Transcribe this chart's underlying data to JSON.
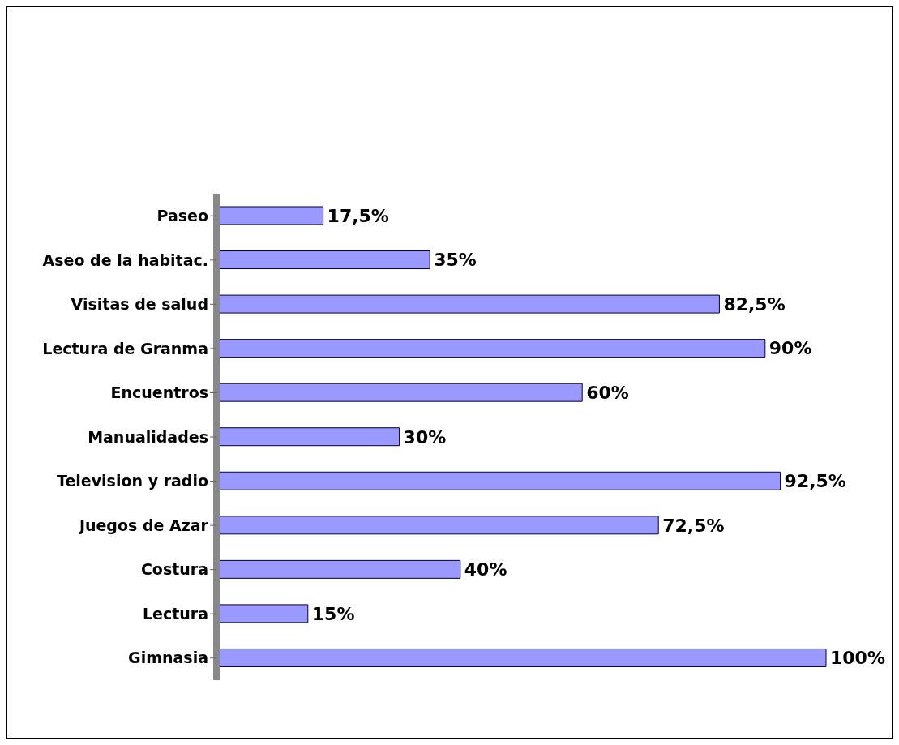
{
  "chart_data": {
    "type": "bar",
    "orientation": "horizontal",
    "categories": [
      "Paseo",
      "Aseo de la habitac.",
      "Visitas de salud",
      "Lectura de Granma",
      "Encuentros",
      "Manualidades",
      "Television y radio",
      "Juegos de Azar",
      "Costura",
      "Lectura",
      "Gimnasia"
    ],
    "values": [
      17.5,
      35,
      82.5,
      90,
      60,
      30,
      92.5,
      72.5,
      40,
      15,
      100
    ],
    "value_labels": [
      "17,5%",
      "35%",
      "82,5%",
      "90%",
      "60%",
      "30%",
      "92,5%",
      "72,5%",
      "40%",
      "15%",
      "100%"
    ],
    "color": "#9999ff"
  }
}
